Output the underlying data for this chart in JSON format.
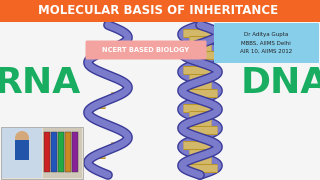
{
  "bg_color": "#f5f5f5",
  "title_text": "MOLECULAR BASIS OF INHERITANCE",
  "title_bg": "#f26522",
  "title_color": "#ffffff",
  "rna_text": "RNA",
  "rna_color": "#00a651",
  "dna_text": "DNA",
  "dna_color": "#00a651",
  "ncert_text": "NCERT BASED BIOLOGY",
  "ncert_bg": "#f4a4a0",
  "ncert_color": "#ffffff",
  "info_bg": "#87ceeb",
  "info_text": "Dr Aditya Gupta\nMBBS, AIIMS Delhi\nAIR 10, AIIMS 2012",
  "info_color": "#222222",
  "helix_color": "#7b7bcc",
  "helix_edge": "#3a3a99",
  "rung_color": "#d4b86a",
  "rung_edge": "#b8962a"
}
